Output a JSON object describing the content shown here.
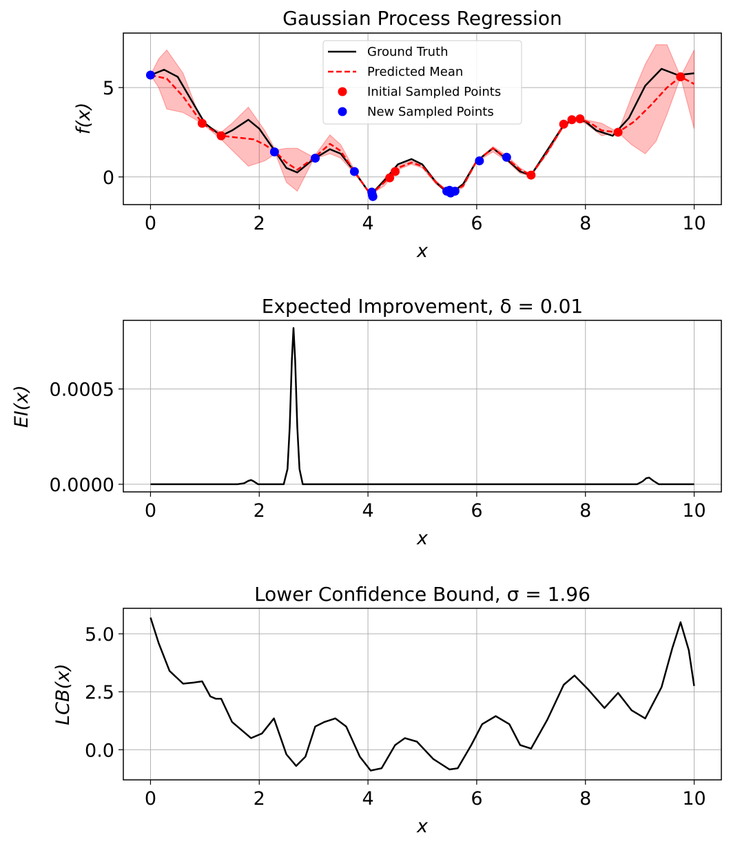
{
  "chart_data": [
    {
      "type": "line",
      "title": "Gaussian Process Regression",
      "xlabel": "x",
      "ylabel": "f(x)",
      "xlim": [
        -0.5,
        10.5
      ],
      "ylim": [
        -1.55,
        8.05
      ],
      "xticks": [
        0,
        2,
        4,
        6,
        8,
        10
      ],
      "yticks": [
        0,
        5
      ],
      "xtick_labels": [
        "0",
        "2",
        "4",
        "6",
        "8",
        "10"
      ],
      "ytick_labels": [
        "0",
        "5"
      ],
      "grid": true,
      "legend_position": "top-center",
      "legend": [
        "Ground Truth",
        "Predicted Mean",
        "Initial Sampled Points",
        "New Sampled Points"
      ],
      "series": [
        {
          "name": "Ground Truth",
          "style": "solid",
          "color": "#000000",
          "x": [
            0,
            0.25,
            0.5,
            0.75,
            1.0,
            1.3,
            1.5,
            1.8,
            2.0,
            2.3,
            2.5,
            2.7,
            3.0,
            3.3,
            3.5,
            3.75,
            4.05,
            4.3,
            4.55,
            4.8,
            5.0,
            5.25,
            5.5,
            5.75,
            6.0,
            6.3,
            6.55,
            6.8,
            7.0,
            7.3,
            7.6,
            7.8,
            8.0,
            8.2,
            8.5,
            8.8,
            9.1,
            9.4,
            9.7,
            10.0
          ],
          "y": [
            5.7,
            6.0,
            5.6,
            4.3,
            3.0,
            2.3,
            2.6,
            3.2,
            2.7,
            1.4,
            0.5,
            0.25,
            1.0,
            1.55,
            1.3,
            0.3,
            -1.0,
            -0.2,
            0.7,
            1.0,
            0.7,
            -0.3,
            -1.0,
            -0.4,
            0.9,
            1.6,
            1.0,
            0.3,
            0.1,
            1.5,
            2.9,
            3.25,
            3.1,
            2.6,
            2.3,
            3.3,
            5.1,
            6.05,
            5.7,
            5.8
          ]
        },
        {
          "name": "Predicted Mean",
          "style": "dashed",
          "color": "#ff0000",
          "x": [
            0,
            0.3,
            0.6,
            0.95,
            1.3,
            1.6,
            1.9,
            2.1,
            2.3,
            2.5,
            2.7,
            3.0,
            3.3,
            3.5,
            3.75,
            4.05,
            4.3,
            4.55,
            4.8,
            5.0,
            5.25,
            5.5,
            5.75,
            6.0,
            6.3,
            6.55,
            6.8,
            7.0,
            7.3,
            7.6,
            7.75,
            7.9,
            8.1,
            8.3,
            8.6,
            8.9,
            9.2,
            9.5,
            9.75,
            10.0
          ],
          "y": [
            5.7,
            5.5,
            4.5,
            3.0,
            2.3,
            2.2,
            2.1,
            1.8,
            1.4,
            0.8,
            0.4,
            1.05,
            1.85,
            1.45,
            0.3,
            -1.0,
            -0.3,
            0.5,
            0.8,
            0.6,
            -0.3,
            -0.9,
            -0.5,
            0.9,
            1.6,
            1.05,
            0.4,
            0.1,
            1.4,
            2.9,
            3.2,
            3.25,
            3.0,
            2.6,
            2.5,
            3.1,
            4.0,
            5.0,
            5.6,
            5.2
          ]
        },
        {
          "name": "95% band upper",
          "style": "band",
          "color": "#ff0000",
          "x": [
            0,
            0.15,
            0.3,
            0.6,
            0.95,
            1.3,
            1.5,
            1.8,
            2.1,
            2.3,
            2.5,
            2.7,
            3.0,
            3.3,
            3.5,
            3.75,
            4.05,
            4.3,
            4.55,
            4.8,
            5.0,
            5.25,
            5.5,
            5.75,
            6.0,
            6.3,
            6.55,
            6.8,
            7.0,
            7.3,
            7.6,
            7.8,
            8.0,
            8.3,
            8.6,
            8.85,
            9.1,
            9.3,
            9.5,
            9.75,
            10.0
          ],
          "y": [
            5.7,
            6.6,
            7.1,
            5.8,
            3.0,
            2.5,
            3.0,
            3.9,
            2.6,
            1.5,
            1.6,
            1.6,
            1.1,
            2.35,
            1.8,
            0.4,
            -1.0,
            -0.1,
            0.6,
            0.9,
            0.7,
            -0.2,
            -0.9,
            -0.35,
            0.9,
            1.7,
            1.2,
            0.5,
            0.15,
            1.55,
            3.0,
            3.3,
            3.2,
            3.0,
            2.5,
            4.5,
            6.3,
            7.4,
            7.4,
            5.6,
            7.1
          ]
        },
        {
          "name": "95% band lower",
          "style": "band",
          "color": "#ff0000",
          "x": [
            0,
            0.15,
            0.3,
            0.6,
            0.95,
            1.3,
            1.5,
            1.8,
            2.1,
            2.3,
            2.5,
            2.7,
            3.0,
            3.3,
            3.5,
            3.75,
            4.05,
            4.3,
            4.55,
            4.8,
            5.0,
            5.25,
            5.5,
            5.75,
            6.0,
            6.3,
            6.55,
            6.8,
            7.0,
            7.3,
            7.6,
            7.8,
            8.0,
            8.3,
            8.6,
            8.85,
            9.1,
            9.3,
            9.5,
            9.75,
            10.0
          ],
          "y": [
            5.7,
            5.0,
            3.8,
            3.6,
            3.0,
            2.1,
            1.5,
            0.6,
            0.9,
            1.3,
            -0.3,
            -0.8,
            1.0,
            1.3,
            1.05,
            0.2,
            -1.0,
            -0.5,
            0.4,
            0.7,
            0.5,
            -0.4,
            -1.0,
            -0.6,
            0.85,
            1.4,
            0.9,
            0.2,
            0.05,
            1.3,
            2.8,
            3.2,
            3.0,
            2.3,
            2.5,
            1.8,
            1.3,
            2.0,
            3.5,
            5.6,
            2.7
          ]
        }
      ],
      "initial_sampled_points": {
        "x": [
          0.95,
          1.3,
          4.4,
          4.5,
          7.0,
          7.6,
          7.75,
          7.9,
          8.6,
          9.75
        ],
        "y": [
          3.0,
          2.3,
          -0.05,
          0.3,
          0.1,
          2.95,
          3.2,
          3.25,
          2.5,
          5.6
        ]
      },
      "new_sampled_points": {
        "x": [
          0.0,
          2.28,
          3.03,
          3.75,
          4.07,
          4.08,
          4.09,
          5.45,
          5.5,
          5.52,
          5.6,
          6.05,
          6.55
        ],
        "y": [
          5.7,
          1.4,
          1.05,
          0.3,
          -0.85,
          -1.0,
          -1.1,
          -0.8,
          -0.75,
          -0.9,
          -0.8,
          0.9,
          1.1
        ]
      }
    },
    {
      "type": "line",
      "title": "Expected Improvement, δ = 0.01",
      "xlabel": "x",
      "ylabel": "EI(x)",
      "xlim": [
        -0.5,
        10.5
      ],
      "ylim": [
        -4e-05,
        0.00086
      ],
      "xticks": [
        0,
        2,
        4,
        6,
        8,
        10
      ],
      "yticks": [
        0,
        0.0005
      ],
      "xtick_labels": [
        "0",
        "2",
        "4",
        "6",
        "8",
        "10"
      ],
      "ytick_labels": [
        "0.0000",
        "0.0005"
      ],
      "grid": true,
      "series": [
        {
          "name": "EI",
          "style": "solid",
          "color": "#000000",
          "x": [
            0,
            1.6,
            1.72,
            1.8,
            1.85,
            1.9,
            1.98,
            2.45,
            2.52,
            2.56,
            2.6,
            2.63,
            2.66,
            2.7,
            2.74,
            2.8,
            8.95,
            9.05,
            9.12,
            9.17,
            9.25,
            9.35,
            10.0
          ],
          "y": [
            0,
            0,
            5e-06,
            1.8e-05,
            2.2e-05,
            1.5e-05,
            0,
            0,
            8e-05,
            0.0003,
            0.00065,
            0.00082,
            0.00065,
            0.0003,
            8e-05,
            0,
            0,
            1.5e-05,
            3.2e-05,
            3.5e-05,
            1.8e-05,
            0,
            0
          ]
        }
      ]
    },
    {
      "type": "line",
      "title": "Lower Confidence Bound, σ = 1.96",
      "xlabel": "x",
      "ylabel": "LCB(x)",
      "xlim": [
        -0.5,
        10.5
      ],
      "ylim": [
        -1.3,
        6.1
      ],
      "xticks": [
        0,
        2,
        4,
        6,
        8,
        10
      ],
      "yticks": [
        0,
        2.5,
        5
      ],
      "xtick_labels": [
        "0",
        "2",
        "4",
        "6",
        "8",
        "10"
      ],
      "ytick_labels": [
        "0.0",
        "2.5",
        "5.0"
      ],
      "grid": true,
      "series": [
        {
          "name": "LCB",
          "style": "solid",
          "color": "#000000",
          "x": [
            0,
            0.15,
            0.35,
            0.6,
            0.8,
            0.95,
            1.1,
            1.2,
            1.3,
            1.5,
            1.85,
            2.05,
            2.27,
            2.5,
            2.68,
            2.85,
            3.03,
            3.2,
            3.4,
            3.6,
            3.85,
            4.05,
            4.25,
            4.5,
            4.68,
            4.9,
            5.2,
            5.5,
            5.65,
            5.9,
            6.1,
            6.35,
            6.6,
            6.8,
            7.0,
            7.3,
            7.6,
            7.8,
            8.05,
            8.35,
            8.6,
            8.85,
            9.1,
            9.4,
            9.6,
            9.75,
            9.9,
            10.0
          ],
          "y": [
            5.7,
            4.6,
            3.4,
            2.85,
            2.9,
            2.95,
            2.3,
            2.2,
            2.2,
            1.2,
            0.5,
            0.7,
            1.35,
            -0.2,
            -0.7,
            -0.3,
            1.0,
            1.2,
            1.35,
            1.0,
            -0.3,
            -0.9,
            -0.8,
            0.2,
            0.5,
            0.35,
            -0.4,
            -0.85,
            -0.8,
            0.2,
            1.1,
            1.45,
            1.1,
            0.2,
            0.05,
            1.3,
            2.8,
            3.2,
            2.6,
            1.8,
            2.45,
            1.7,
            1.35,
            2.7,
            4.4,
            5.5,
            4.3,
            2.75
          ]
        }
      ]
    }
  ]
}
